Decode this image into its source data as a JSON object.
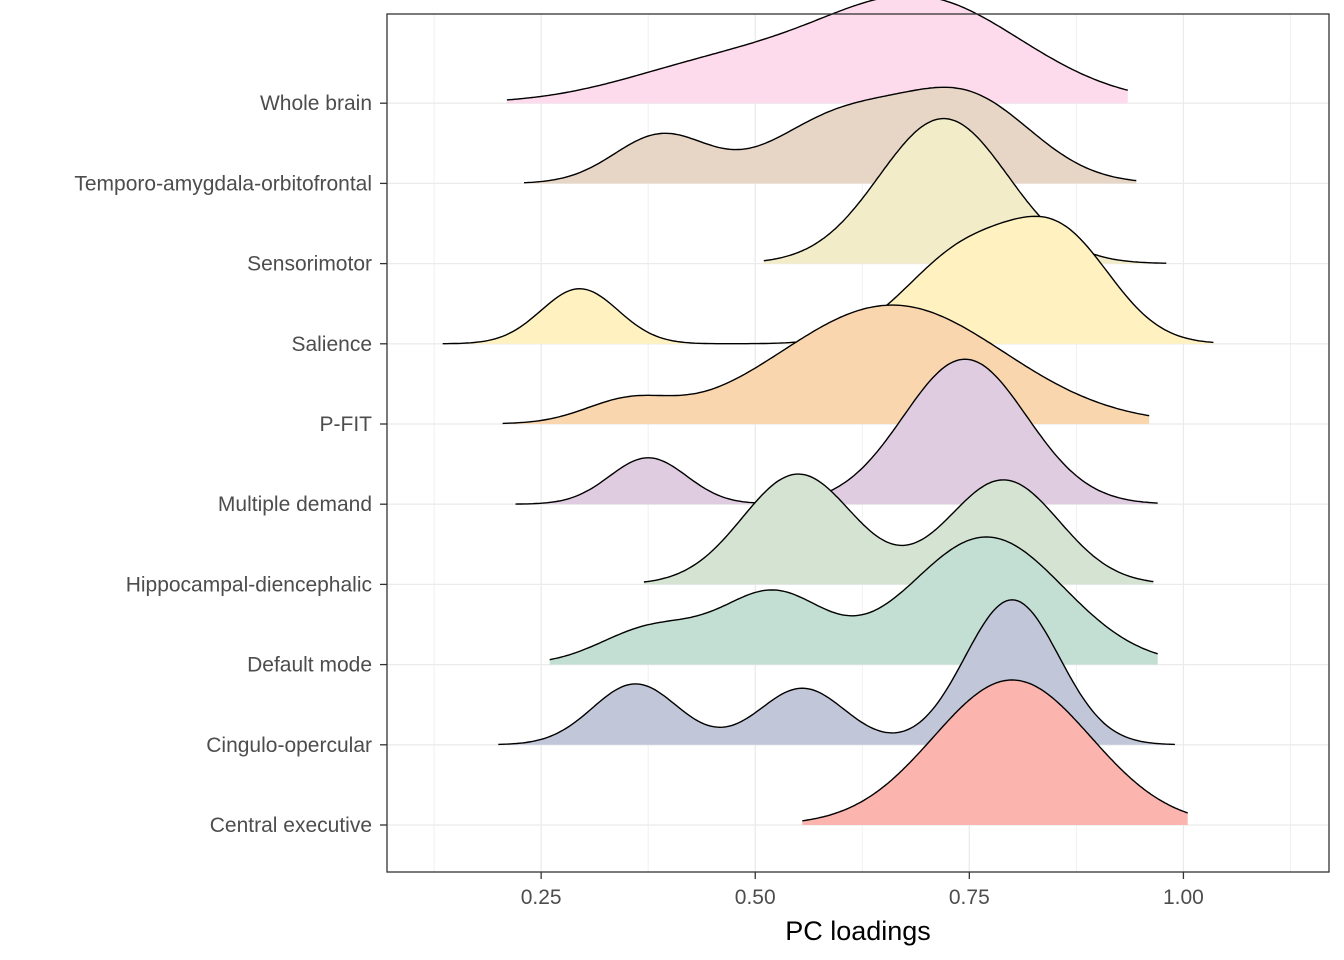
{
  "chart_data": {
    "type": "ridgeline",
    "title": "",
    "xlabel": "PC loadings",
    "ylabel": "",
    "xlim": [
      0.07,
      1.17
    ],
    "x_ticks": [
      {
        "value": 0.25,
        "label": "0.25"
      },
      {
        "value": 0.5,
        "label": "0.50"
      },
      {
        "value": 0.75,
        "label": "0.75"
      },
      {
        "value": 1.0,
        "label": "1.00"
      }
    ],
    "grid": true,
    "legend": "none",
    "outline_color": "#000000",
    "series": [
      {
        "name": "Central executive",
        "color": "#FBB4AE",
        "x_range": [
          0.555,
          1.005
        ],
        "peaks": [
          [
            0.8,
            0.092,
            1.0
          ]
        ]
      },
      {
        "name": "Cingulo-opercular",
        "color": "#C2C6D9",
        "x_range": [
          0.2,
          0.99
        ],
        "peaks": [
          [
            0.36,
            0.05,
            0.42
          ],
          [
            0.555,
            0.05,
            0.39
          ],
          [
            0.8,
            0.055,
            1.0
          ]
        ]
      },
      {
        "name": "Default mode",
        "color": "#C3DFD3",
        "x_range": [
          0.26,
          0.97
        ],
        "peaks": [
          [
            0.38,
            0.06,
            0.25
          ],
          [
            0.52,
            0.06,
            0.48
          ],
          [
            0.77,
            0.09,
            0.88
          ]
        ]
      },
      {
        "name": "Hippocampal-diencephalic",
        "color": "#D4E3D2",
        "x_range": [
          0.37,
          0.965
        ],
        "peaks": [
          [
            0.55,
            0.065,
            0.76
          ],
          [
            0.79,
            0.065,
            0.72
          ]
        ]
      },
      {
        "name": "Multiple demand",
        "color": "#E0CCE0",
        "x_range": [
          0.22,
          0.97
        ],
        "peaks": [
          [
            0.375,
            0.045,
            0.32
          ],
          [
            0.745,
            0.072,
            1.0
          ]
        ]
      },
      {
        "name": "P-FIT",
        "color": "#F9D6AE",
        "x_range": [
          0.205,
          0.96
        ],
        "peaks": [
          [
            0.35,
            0.05,
            0.14
          ],
          [
            0.66,
            0.13,
            0.82
          ]
        ]
      },
      {
        "name": "Salience",
        "color": "#FFF1C0",
        "x_range": [
          0.135,
          1.035
        ],
        "peaks": [
          [
            0.295,
            0.045,
            0.38
          ],
          [
            0.745,
            0.07,
            0.62
          ],
          [
            0.86,
            0.06,
            0.66
          ]
        ]
      },
      {
        "name": "Sensorimotor",
        "color": "#F2EDC8",
        "x_range": [
          0.51,
          0.98
        ],
        "peaks": [
          [
            0.72,
            0.075,
            1.0
          ]
        ]
      },
      {
        "name": "Temporo-amygdala-orbitofrontal",
        "color": "#E7D6C5",
        "x_range": [
          0.23,
          0.945
        ],
        "peaks": [
          [
            0.39,
            0.055,
            0.33
          ],
          [
            0.6,
            0.08,
            0.45
          ],
          [
            0.75,
            0.075,
            0.56
          ]
        ]
      },
      {
        "name": "Whole brain",
        "color": "#FDDAEC",
        "x_range": [
          0.21,
          0.935
        ],
        "peaks": [
          [
            0.45,
            0.11,
            0.24
          ],
          [
            0.69,
            0.12,
            0.72
          ]
        ]
      }
    ]
  }
}
